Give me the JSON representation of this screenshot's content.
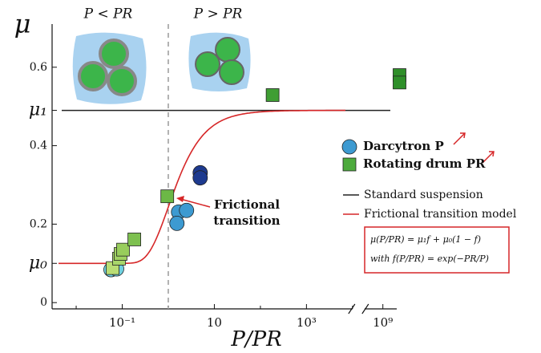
{
  "chart_data": {
    "type": "scatter",
    "xlabel": "P/PR",
    "ylabel": "μ",
    "xscale": "log",
    "xlim": [
      0.003,
      2000000000
    ],
    "xbreak": [
      10000,
      400000000
    ],
    "ylim": [
      -0.016,
      0.71
    ],
    "xticks": [
      {
        "value": 0.1,
        "label": "10⁻¹"
      },
      10,
      {
        "value": 1000,
        "label": "10³"
      },
      {
        "value": 1000000000,
        "label": "10⁹"
      }
    ],
    "xminorticks": [
      0.01,
      1,
      100,
      10000
    ],
    "yticks": [
      0,
      {
        "value": 0.1,
        "label": "μ₀"
      },
      0.2,
      0.4,
      {
        "value": 0.49,
        "label": "μ₁"
      },
      0.6
    ],
    "regions": [
      "P < PR",
      "P > PR"
    ],
    "vline": {
      "x": 1,
      "color": "#999999"
    },
    "hline": {
      "name": "Standard suspension",
      "color": "#222222"
    },
    "model": {
      "name": "Frictional transition model",
      "color": "#d62728",
      "formula": [
        "μ(P/PR) = μ₁f + μ₀(1 − f)",
        "with f(P/PR) = exp(−PR/P)"
      ]
    },
    "annotation": [
      "Frictional",
      "transition"
    ],
    "series": [
      {
        "name": "Darcytron P",
        "marker": "circle",
        "color": "#3d9ad1",
        "x": [
          0.057,
          0.0755,
          1.67,
          2.49,
          1.54,
          4.93,
          4.93
        ],
        "values": [
          0.084,
          0.086,
          0.231,
          0.235,
          0.202,
          0.331,
          0.318
        ],
        "colors": [
          "#6fd0df",
          "#6fd0df",
          "#3d9ad1",
          "#3d9ad1",
          "#3d9ad1",
          "#1d3a8f",
          "#1d3a8f"
        ]
      },
      {
        "name": "Rotating drum PR",
        "marker": "square",
        "color": "#4caa3c",
        "x": [
          0.062,
          0.085,
          0.092,
          0.104,
          0.183,
          0.95,
          184,
          2300000000,
          2300000000
        ],
        "values": [
          0.088,
          0.112,
          0.124,
          0.135,
          0.161,
          0.271,
          0.529,
          0.58,
          0.561
        ],
        "colors": [
          "#b9dd74",
          "#a8d66a",
          "#a0d262",
          "#98cd5c",
          "#7dc04f",
          "#6cb846",
          "#3f9e34",
          "#2f8f2a",
          "#2f8f2a"
        ]
      }
    ]
  }
}
